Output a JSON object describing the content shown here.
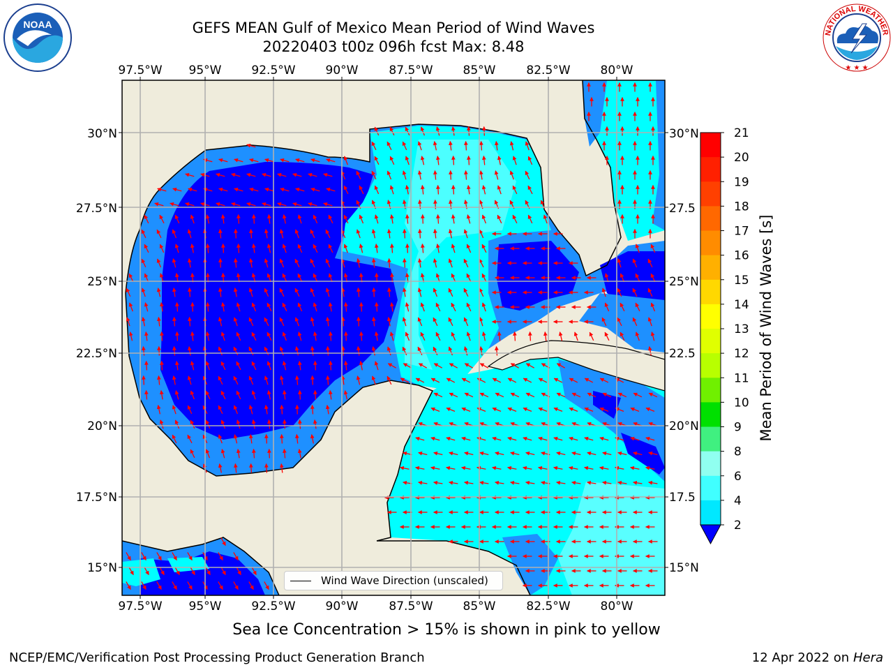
{
  "header": {
    "title_line1": "GEFS MEAN Gulf of Mexico Mean Period of Wind Waves",
    "title_line2": "20220403 t00z 096h fcst   Max: 8.48"
  },
  "logos": {
    "left": "NOAA",
    "left_ring_text": "NATIONAL OCEANIC AND ATMOSPHERIC ADMINISTRATION · U.S. DEPARTMENT OF COMMERCE",
    "right_ring_text": "NATIONAL WEATHER SERVICE"
  },
  "map": {
    "lon_labels": [
      "97.5°W",
      "95°W",
      "92.5°W",
      "90°W",
      "87.5°W",
      "85°W",
      "82.5°W",
      "80°W"
    ],
    "lat_labels_left": [
      "30°N",
      "27.5°N",
      "25°N",
      "22.5°N",
      "20°N",
      "17.5°N",
      "15°N"
    ],
    "lat_labels_right": [
      "30°N",
      "27.5",
      "25°N",
      "22.5",
      "20°N",
      "17.5",
      "15°N"
    ],
    "legend_label": "Wind Wave Direction (unscaled)",
    "arrow_color": "#ff0000",
    "land_color": "#efecdc",
    "ocean_colors": {
      "2-4": "#0000ff",
      "4-6": "#1e90ff",
      "6-8": "#00ffff",
      "8-9": "#7fffff"
    }
  },
  "colorbar": {
    "title": "Mean Period of Wind Waves [s]",
    "ticks": [
      "21",
      "20",
      "19",
      "18",
      "17",
      "16",
      "15",
      "14",
      "13",
      "12",
      "11",
      "10",
      "9",
      "8",
      "6",
      "4",
      "2"
    ],
    "colors": [
      "#ff0000",
      "#ff2000",
      "#ff4000",
      "#ff6800",
      "#ff8c00",
      "#ffb000",
      "#ffd800",
      "#ffff00",
      "#e0ff00",
      "#b8ff00",
      "#70f000",
      "#00e000",
      "#40f080",
      "#90fff0",
      "#40ffff",
      "#00e8ff",
      "#0078ff"
    ]
  },
  "footer": {
    "subnote": "Sea Ice Concentration > 15% is shown in pink to yellow",
    "left": "NCEP/EMC/Verification Post Processing Product Generation Branch",
    "right_date": "12 Apr 2022 on ",
    "right_host": "Hera"
  }
}
